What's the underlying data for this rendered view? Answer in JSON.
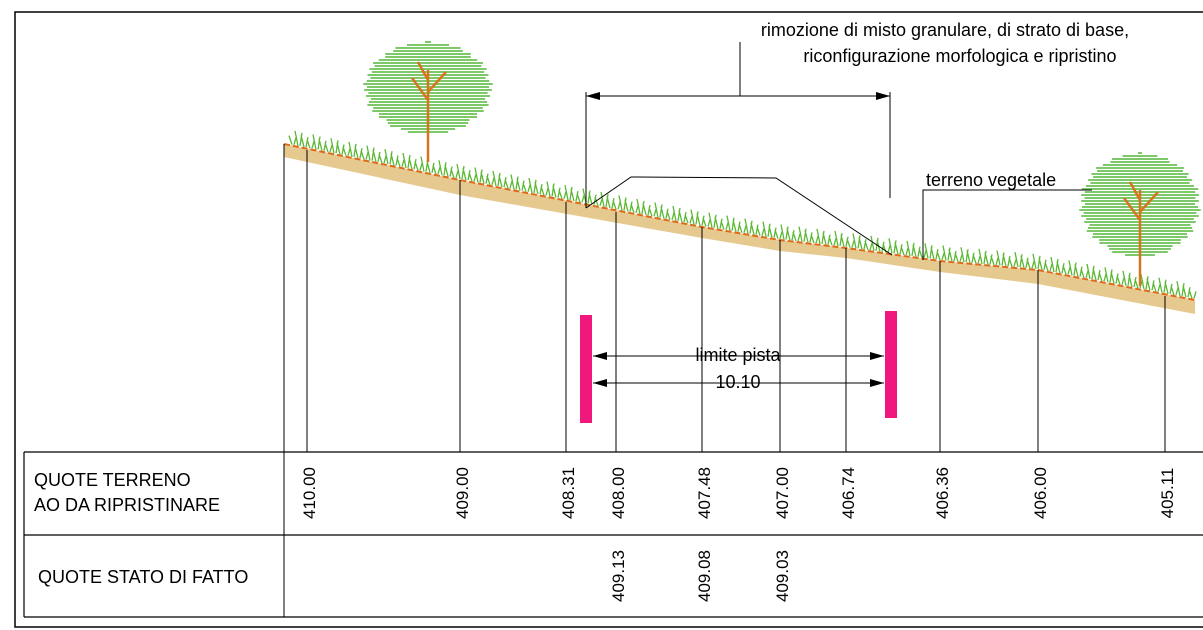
{
  "annotations": {
    "removal_line1": "rimozione di misto granulare, di strato di base,",
    "removal_line2": "riconfigurazione morfologica e ripristino",
    "topsoil": "terreno vegetale",
    "track_limit": "limite pista",
    "track_width": "10.10"
  },
  "table": {
    "row1_line1": "QUOTE TERRENO",
    "row1_line2": "AO DA RIPRISTINARE",
    "row2_label": "QUOTE STATO DI FATTO",
    "restore_elevations": [
      "410.00",
      "409.00",
      "408.31",
      "408.00",
      "407.48",
      "407.00",
      "406.74",
      "406.36",
      "406.00",
      "405.11"
    ],
    "existing_elevations": [
      "409.13",
      "409.08",
      "409.03"
    ]
  },
  "colors": {
    "soil_fill": "#e6c98f",
    "soil_line": "#e06a1a",
    "grass": "#5ab832",
    "tree_foliage": "#7dc868",
    "tree_trunk": "#d9741c",
    "limit_marker": "#f0187c"
  }
}
